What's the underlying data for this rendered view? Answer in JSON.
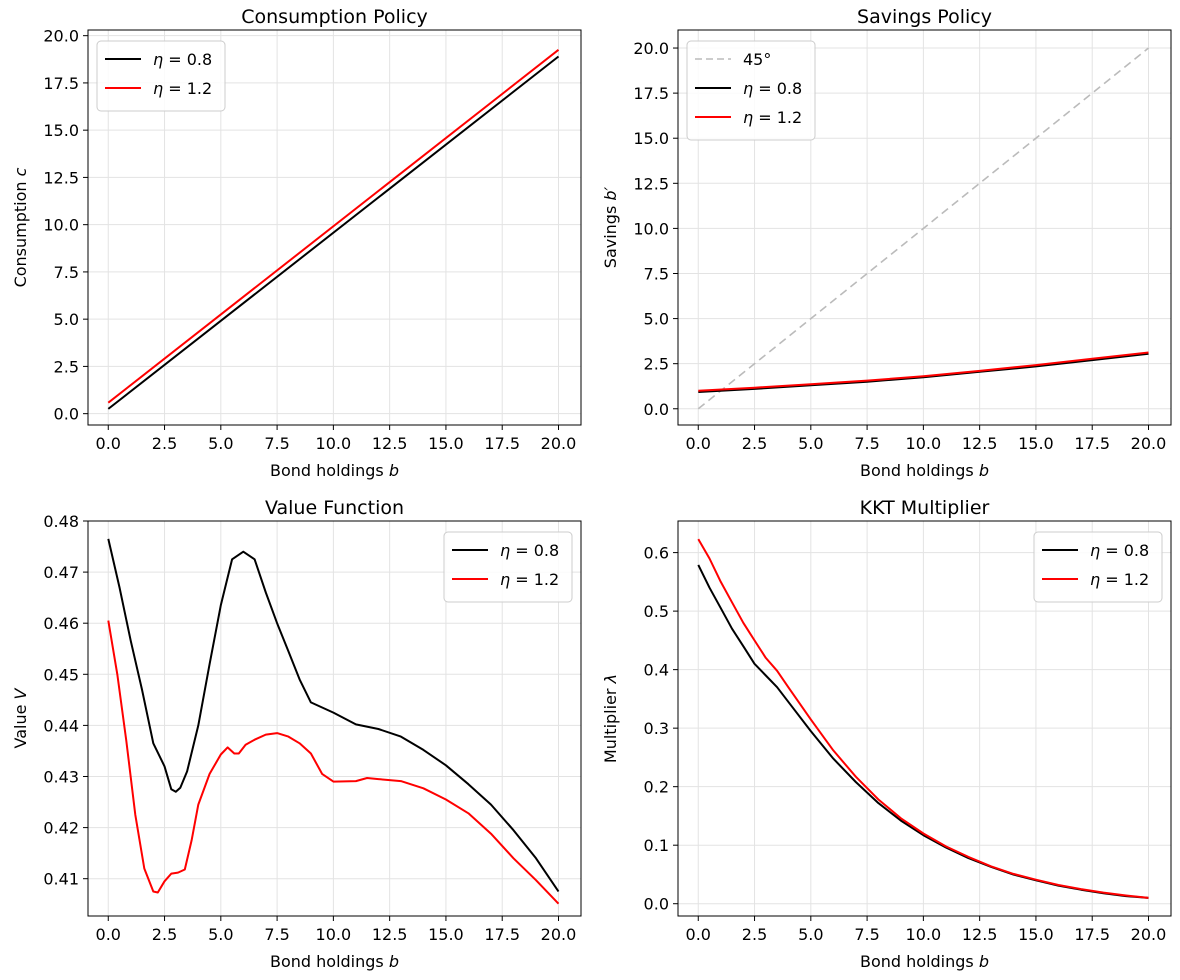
{
  "colors": {
    "eta_low": "#000000",
    "eta_high": "#ff0000",
    "diag": "#bbbbbb"
  },
  "chart_data": [
    {
      "type": "line",
      "title": "Consumption Policy",
      "xlabel": "Bond holdings b",
      "ylabel": "Consumption c",
      "xlim": [
        -0.9,
        21.0
      ],
      "ylim": [
        -0.6,
        20.3
      ],
      "xticks": [
        0,
        2.5,
        5,
        7.5,
        10,
        12.5,
        15,
        17.5,
        20
      ],
      "yticks": [
        0,
        2.5,
        5,
        7.5,
        10,
        12.5,
        15,
        17.5,
        20
      ],
      "grid": true,
      "legend_position": "top-left",
      "series": [
        {
          "name": "η = 0.8",
          "color": "#000000",
          "dashed": false,
          "x": [
            0,
            20
          ],
          "y": [
            0.25,
            18.9
          ]
        },
        {
          "name": "η = 1.2",
          "color": "#ff0000",
          "dashed": false,
          "x": [
            0,
            20
          ],
          "y": [
            0.58,
            19.25
          ]
        }
      ]
    },
    {
      "type": "line",
      "title": "Savings Policy",
      "xlabel": "Bond holdings b",
      "ylabel": "Savings b′",
      "xlim": [
        -0.9,
        21.0
      ],
      "ylim": [
        -0.9,
        21.0
      ],
      "xticks": [
        0,
        2.5,
        5,
        7.5,
        10,
        12.5,
        15,
        17.5,
        20
      ],
      "yticks": [
        0,
        2.5,
        5,
        7.5,
        10,
        12.5,
        15,
        17.5,
        20
      ],
      "grid": true,
      "legend_position": "top-left",
      "series": [
        {
          "name": "45°",
          "color": "#bbbbbb",
          "dashed": true,
          "x": [
            0,
            20
          ],
          "y": [
            0,
            20
          ]
        },
        {
          "name": "η = 0.8",
          "color": "#000000",
          "dashed": false,
          "x": [
            0,
            2.5,
            5,
            7.5,
            10,
            12.5,
            15,
            17.5,
            20
          ],
          "y": [
            0.93,
            1.1,
            1.3,
            1.5,
            1.75,
            2.05,
            2.35,
            2.7,
            3.05
          ]
        },
        {
          "name": "η = 1.2",
          "color": "#ff0000",
          "dashed": false,
          "x": [
            0,
            2.5,
            5,
            7.5,
            10,
            12.5,
            15,
            17.5,
            20
          ],
          "y": [
            1.0,
            1.17,
            1.36,
            1.56,
            1.8,
            2.1,
            2.42,
            2.77,
            3.12
          ]
        }
      ]
    },
    {
      "type": "line",
      "title": "Value Function",
      "xlabel": "Bond holdings b",
      "ylabel": "Value V",
      "xlim": [
        -0.9,
        21.0
      ],
      "ylim": [
        0.4027,
        0.48
      ],
      "xticks": [
        0,
        2.5,
        5,
        7.5,
        10,
        12.5,
        15,
        17.5,
        20
      ],
      "yticks": [
        0.41,
        0.42,
        0.43,
        0.44,
        0.45,
        0.46,
        0.47,
        0.48
      ],
      "grid": true,
      "legend_position": "top-right",
      "series": [
        {
          "name": "η = 0.8",
          "color": "#000000",
          "dashed": false,
          "x": [
            0,
            0.5,
            1.0,
            1.5,
            2.0,
            2.5,
            2.8,
            3.0,
            3.2,
            3.5,
            4.0,
            4.5,
            5.0,
            5.5,
            6.0,
            6.5,
            7.0,
            7.5,
            8.0,
            8.5,
            9.0,
            10.0,
            11.0,
            12.0,
            13.0,
            14.0,
            15.0,
            16.0,
            17.0,
            18.0,
            19.0,
            20.0
          ],
          "y": [
            0.4765,
            0.467,
            0.4565,
            0.447,
            0.4365,
            0.432,
            0.4275,
            0.427,
            0.4278,
            0.431,
            0.44,
            0.452,
            0.4635,
            0.4725,
            0.474,
            0.4725,
            0.466,
            0.46,
            0.4545,
            0.449,
            0.4445,
            0.4425,
            0.4402,
            0.4393,
            0.4378,
            0.4352,
            0.4322,
            0.4285,
            0.4245,
            0.4195,
            0.414,
            0.4075
          ]
        },
        {
          "name": "η = 1.2",
          "color": "#ff0000",
          "dashed": false,
          "x": [
            0,
            0.4,
            0.8,
            1.2,
            1.6,
            2.0,
            2.2,
            2.5,
            2.8,
            3.1,
            3.4,
            3.7,
            4.0,
            4.5,
            5.0,
            5.3,
            5.6,
            5.8,
            6.1,
            6.5,
            7.0,
            7.5,
            8.0,
            8.5,
            9.0,
            9.5,
            10.0,
            11.0,
            11.5,
            12.0,
            13.0,
            14.0,
            15.0,
            16.0,
            17.0,
            18.0,
            19.0,
            20.0
          ],
          "y": [
            0.4605,
            0.45,
            0.437,
            0.4225,
            0.412,
            0.4075,
            0.4073,
            0.4095,
            0.411,
            0.4112,
            0.4118,
            0.4175,
            0.4245,
            0.4305,
            0.4343,
            0.4357,
            0.4345,
            0.4345,
            0.4362,
            0.4372,
            0.4382,
            0.4385,
            0.4378,
            0.4365,
            0.4345,
            0.4305,
            0.429,
            0.4291,
            0.4297,
            0.4295,
            0.4291,
            0.4277,
            0.4255,
            0.4228,
            0.4188,
            0.414,
            0.4097,
            0.4051
          ]
        }
      ]
    },
    {
      "type": "line",
      "title": "KKT Multiplier",
      "xlabel": "Bond holdings b",
      "ylabel": "Multiplier λ",
      "xlim": [
        -0.9,
        21.0
      ],
      "ylim": [
        -0.021,
        0.654
      ],
      "xticks": [
        0,
        2.5,
        5,
        7.5,
        10,
        12.5,
        15,
        17.5,
        20
      ],
      "yticks": [
        0.0,
        0.1,
        0.2,
        0.3,
        0.4,
        0.5,
        0.6
      ],
      "grid": true,
      "legend_position": "top-right",
      "series": [
        {
          "name": "η = 0.8",
          "color": "#000000",
          "dashed": false,
          "x": [
            0,
            0.5,
            1.0,
            1.5,
            2.0,
            2.5,
            3.0,
            3.5,
            4.0,
            5.0,
            6.0,
            7.0,
            8.0,
            9.0,
            10.0,
            11.0,
            12.0,
            13.0,
            14.0,
            15.0,
            16.0,
            17.0,
            18.0,
            19.0,
            20.0
          ],
          "y": [
            0.579,
            0.54,
            0.505,
            0.47,
            0.44,
            0.41,
            0.39,
            0.37,
            0.345,
            0.295,
            0.248,
            0.208,
            0.172,
            0.142,
            0.117,
            0.096,
            0.078,
            0.063,
            0.05,
            0.04,
            0.031,
            0.024,
            0.018,
            0.013,
            0.01
          ]
        },
        {
          "name": "η = 1.2",
          "color": "#ff0000",
          "dashed": false,
          "x": [
            0,
            0.5,
            1.0,
            1.5,
            2.0,
            2.5,
            3.0,
            3.5,
            4.0,
            5.0,
            6.0,
            7.0,
            8.0,
            9.0,
            10.0,
            11.0,
            12.0,
            13.0,
            14.0,
            15.0,
            16.0,
            17.0,
            18.0,
            19.0,
            20.0
          ],
          "y": [
            0.623,
            0.59,
            0.55,
            0.515,
            0.48,
            0.45,
            0.42,
            0.398,
            0.37,
            0.315,
            0.262,
            0.217,
            0.178,
            0.146,
            0.12,
            0.098,
            0.08,
            0.064,
            0.051,
            0.041,
            0.032,
            0.025,
            0.019,
            0.014,
            0.01
          ]
        }
      ]
    }
  ]
}
